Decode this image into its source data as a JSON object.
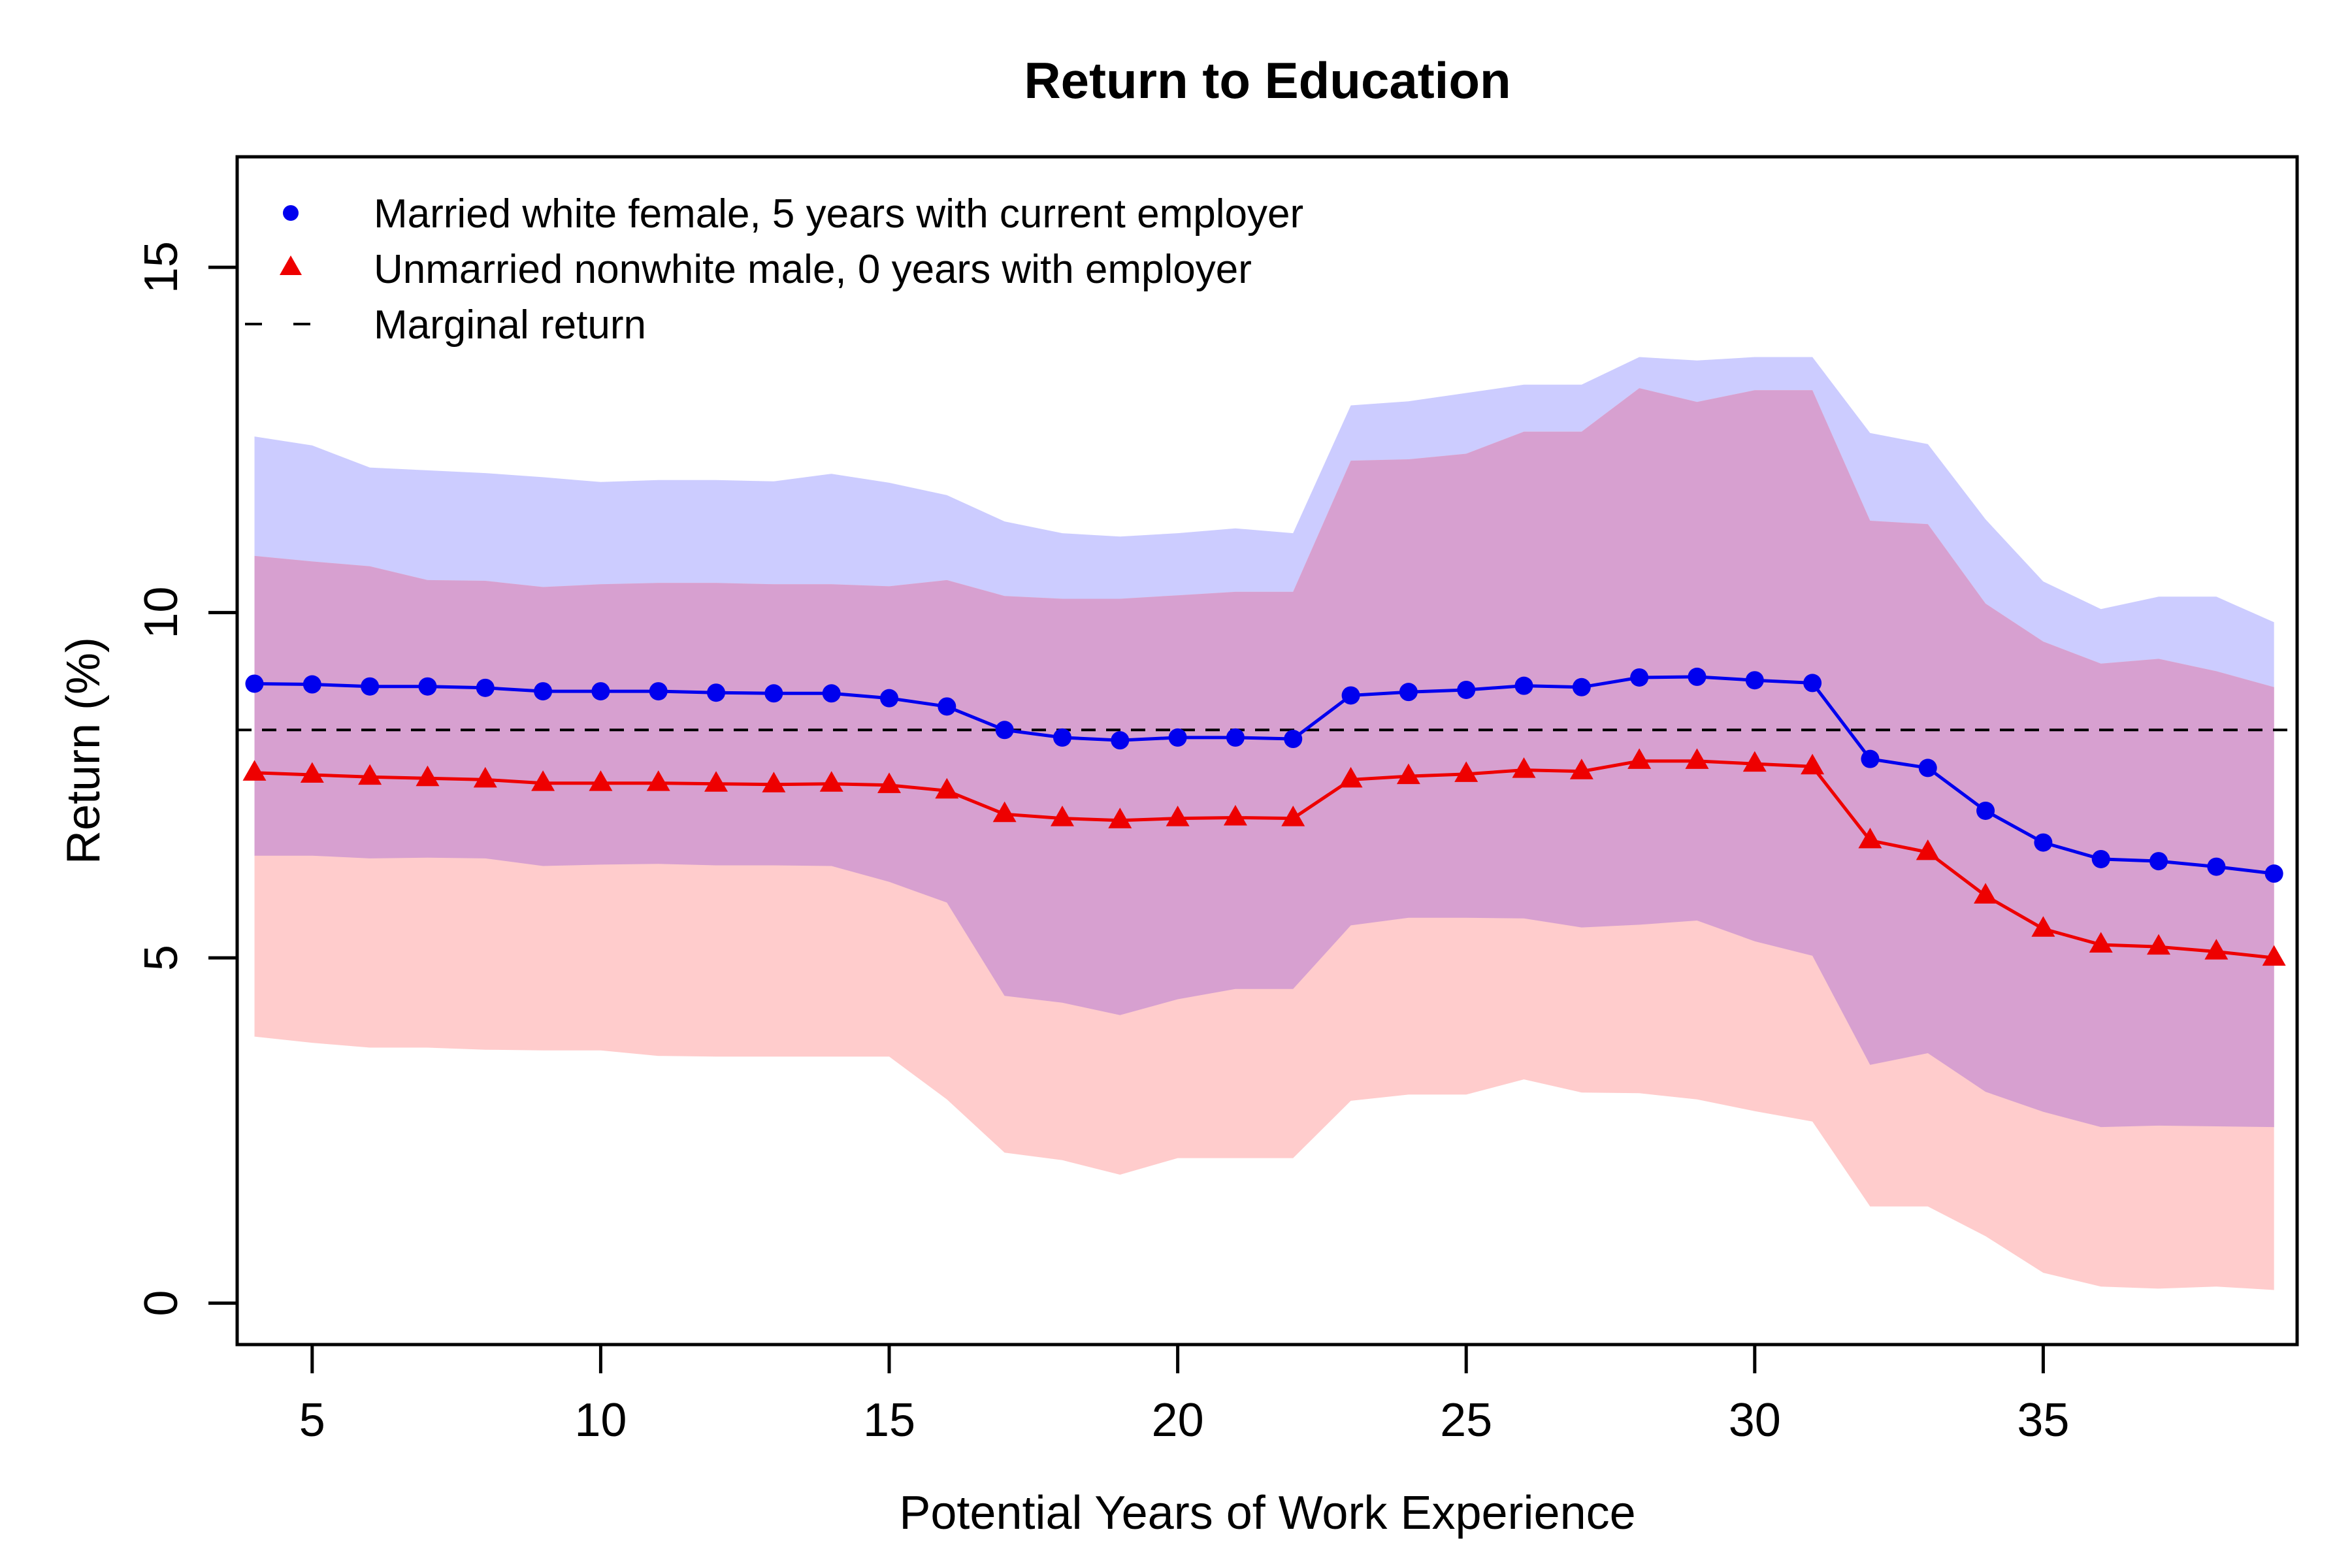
{
  "chart_data": {
    "type": "line",
    "title": "Return to Education",
    "xlabel": "Potential Years of Work Experience",
    "ylabel": "Return (%)",
    "xlim": [
      3.7,
      39.4
    ],
    "ylim": [
      -0.6,
      16.6
    ],
    "x_ticks": [
      5,
      10,
      15,
      20,
      25,
      30,
      35
    ],
    "y_ticks": [
      0,
      5,
      10,
      15
    ],
    "grid": false,
    "legend_position": "top-left",
    "x": [
      4,
      5,
      6,
      7,
      8,
      9,
      10,
      11,
      12,
      13,
      14,
      15,
      16,
      17,
      18,
      19,
      20,
      21,
      22,
      23,
      24,
      25,
      26,
      27,
      28,
      29,
      30,
      31,
      32,
      33,
      34,
      35,
      36,
      37,
      38,
      39
    ],
    "series": [
      {
        "name": "Married white female, 5 years with current employer",
        "marker": "circle",
        "color": "#0000ee",
        "band_color": "#ccccff",
        "values": [
          8.97,
          8.96,
          8.93,
          8.93,
          8.91,
          8.86,
          8.86,
          8.86,
          8.84,
          8.83,
          8.83,
          8.76,
          8.64,
          8.3,
          8.19,
          8.15,
          8.19,
          8.19,
          8.17,
          8.8,
          8.85,
          8.88,
          8.94,
          8.92,
          9.06,
          9.07,
          9.02,
          8.98,
          7.88,
          7.75,
          7.13,
          6.67,
          6.43,
          6.4,
          6.32,
          6.22
        ],
        "upper": [
          12.55,
          12.42,
          12.1,
          12.06,
          12.02,
          11.96,
          11.89,
          11.92,
          11.92,
          11.9,
          12.01,
          11.88,
          11.7,
          11.32,
          11.15,
          11.1,
          11.15,
          11.22,
          11.15,
          13.0,
          13.06,
          13.18,
          13.3,
          13.3,
          13.7,
          13.65,
          13.7,
          13.7,
          12.6,
          12.44,
          11.35,
          10.45,
          10.05,
          10.23,
          10.23,
          9.86
        ],
        "lower": [
          6.48,
          6.48,
          6.44,
          6.45,
          6.44,
          6.33,
          6.35,
          6.36,
          6.34,
          6.34,
          6.33,
          6.1,
          5.8,
          4.45,
          4.35,
          4.17,
          4.4,
          4.55,
          4.55,
          5.47,
          5.58,
          5.58,
          5.57,
          5.44,
          5.48,
          5.54,
          5.24,
          5.03,
          3.45,
          3.62,
          3.06,
          2.77,
          2.55,
          2.57,
          2.56,
          2.55
        ]
      },
      {
        "name": "Unmarried nonwhite male, 0 years with employer",
        "marker": "triangle",
        "color": "#ee0000",
        "band_color": "#ffcccc",
        "values": [
          7.68,
          7.65,
          7.62,
          7.6,
          7.58,
          7.53,
          7.53,
          7.53,
          7.52,
          7.51,
          7.52,
          7.5,
          7.42,
          7.08,
          7.02,
          6.99,
          7.02,
          7.03,
          7.02,
          7.58,
          7.63,
          7.66,
          7.72,
          7.7,
          7.85,
          7.85,
          7.81,
          7.77,
          6.7,
          6.53,
          5.9,
          5.42,
          5.19,
          5.16,
          5.09,
          5.0
        ],
        "upper": [
          10.82,
          10.74,
          10.67,
          10.47,
          10.46,
          10.37,
          10.41,
          10.43,
          10.43,
          10.41,
          10.41,
          10.38,
          10.47,
          10.24,
          10.2,
          10.2,
          10.25,
          10.3,
          10.3,
          12.2,
          12.22,
          12.3,
          12.62,
          12.62,
          13.25,
          13.05,
          13.22,
          13.22,
          11.33,
          11.28,
          10.13,
          9.58,
          9.26,
          9.33,
          9.15,
          8.92
        ],
        "lower": [
          3.86,
          3.77,
          3.7,
          3.7,
          3.67,
          3.66,
          3.66,
          3.58,
          3.57,
          3.57,
          3.57,
          3.57,
          2.95,
          2.18,
          2.07,
          1.86,
          2.1,
          2.1,
          2.1,
          2.93,
          3.02,
          3.02,
          3.24,
          3.05,
          3.04,
          2.95,
          2.78,
          2.63,
          1.4,
          1.4,
          0.97,
          0.44,
          0.24,
          0.21,
          0.24,
          0.19
        ]
      }
    ],
    "reference_line": {
      "name": "Marginal return",
      "value": 8.3,
      "style": "dashed",
      "color": "#000000"
    },
    "overlap_color": "#d7a0d0"
  }
}
